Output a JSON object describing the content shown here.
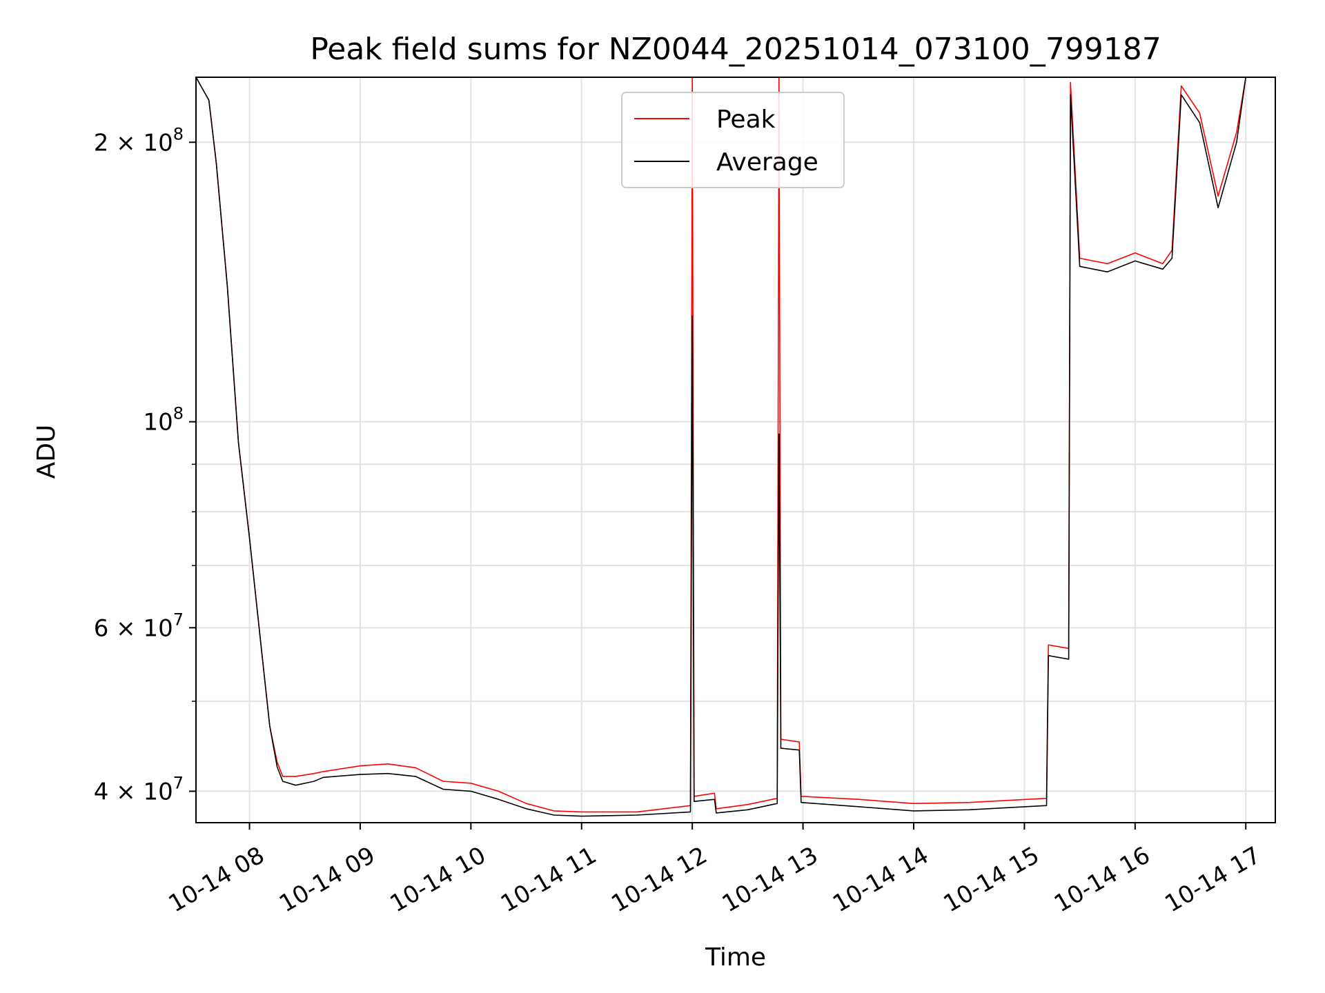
{
  "chart_data": {
    "type": "line",
    "title": "Peak field sums for NZ0044_20251014_073100_799187",
    "xlabel": "Time",
    "ylabel": "ADU",
    "xlim": [
      "2025-10-14 07:31",
      "2025-10-14 17:16"
    ],
    "ylim": [
      37000000,
      235000000
    ],
    "yscale": "log",
    "grid": true,
    "legend_position": "top-center",
    "x_ticks": [
      {
        "x": "2025-10-14 08:00",
        "label": "10-14 08"
      },
      {
        "x": "2025-10-14 09:00",
        "label": "10-14 09"
      },
      {
        "x": "2025-10-14 10:00",
        "label": "10-14 10"
      },
      {
        "x": "2025-10-14 11:00",
        "label": "10-14 11"
      },
      {
        "x": "2025-10-14 12:00",
        "label": "10-14 12"
      },
      {
        "x": "2025-10-14 13:00",
        "label": "10-14 13"
      },
      {
        "x": "2025-10-14 14:00",
        "label": "10-14 14"
      },
      {
        "x": "2025-10-14 15:00",
        "label": "10-14 15"
      },
      {
        "x": "2025-10-14 16:00",
        "label": "10-14 16"
      },
      {
        "x": "2025-10-14 17:00",
        "label": "10-14 17"
      }
    ],
    "y_ticks": [
      {
        "value": 40000000,
        "base": "4 × 10",
        "exp": "7"
      },
      {
        "value": 60000000,
        "base": "6 × 10",
        "exp": "7"
      },
      {
        "value": 100000000,
        "base": "10",
        "exp": "8"
      },
      {
        "value": 200000000,
        "base": "2 × 10",
        "exp": "8"
      }
    ],
    "y_minor_ticks": [
      50000000,
      70000000,
      80000000,
      90000000
    ],
    "series": [
      {
        "name": "Peak",
        "color": "#ff0000",
        "points": [
          [
            "2025-10-14 07:31",
            235000000
          ],
          [
            "2025-10-14 07:38",
            222000000
          ],
          [
            "2025-10-14 07:42",
            190000000
          ],
          [
            "2025-10-14 07:48",
            140000000
          ],
          [
            "2025-10-14 07:54",
            95000000
          ],
          [
            "2025-10-14 08:00",
            75000000
          ],
          [
            "2025-10-14 08:06",
            58000000
          ],
          [
            "2025-10-14 08:11",
            47000000
          ],
          [
            "2025-10-14 08:15",
            43000000
          ],
          [
            "2025-10-14 08:18",
            41500000
          ],
          [
            "2025-10-14 08:25",
            41500000
          ],
          [
            "2025-10-14 08:35",
            41800000
          ],
          [
            "2025-10-14 08:40",
            42000000
          ],
          [
            "2025-10-14 09:00",
            42600000
          ],
          [
            "2025-10-14 09:15",
            42800000
          ],
          [
            "2025-10-14 09:30",
            42400000
          ],
          [
            "2025-10-14 09:45",
            41000000
          ],
          [
            "2025-10-14 10:00",
            40800000
          ],
          [
            "2025-10-14 10:15",
            40000000
          ],
          [
            "2025-10-14 10:30",
            38800000
          ],
          [
            "2025-10-14 10:45",
            38100000
          ],
          [
            "2025-10-14 11:00",
            38000000
          ],
          [
            "2025-10-14 11:30",
            38000000
          ],
          [
            "2025-10-14 11:59",
            38600000
          ],
          [
            "2025-10-14 12:00",
            235000000
          ],
          [
            "2025-10-14 12:01",
            39500000
          ],
          [
            "2025-10-14 12:12",
            39800000
          ],
          [
            "2025-10-14 12:13",
            38300000
          ],
          [
            "2025-10-14 12:30",
            38700000
          ],
          [
            "2025-10-14 12:46",
            39300000
          ],
          [
            "2025-10-14 12:47",
            235000000
          ],
          [
            "2025-10-14 12:48",
            45500000
          ],
          [
            "2025-10-14 12:58",
            45200000
          ],
          [
            "2025-10-14 12:59",
            39500000
          ],
          [
            "2025-10-14 13:30",
            39200000
          ],
          [
            "2025-10-14 14:00",
            38800000
          ],
          [
            "2025-10-14 14:30",
            38900000
          ],
          [
            "2025-10-14 15:12",
            39300000
          ],
          [
            "2025-10-14 15:13",
            57500000
          ],
          [
            "2025-10-14 15:24",
            57000000
          ],
          [
            "2025-10-14 15:25",
            232000000
          ],
          [
            "2025-10-14 15:30",
            150000000
          ],
          [
            "2025-10-14 15:45",
            148000000
          ],
          [
            "2025-10-14 16:00",
            152000000
          ],
          [
            "2025-10-14 16:15",
            148000000
          ],
          [
            "2025-10-14 16:20",
            153000000
          ],
          [
            "2025-10-14 16:25",
            230000000
          ],
          [
            "2025-10-14 16:35",
            215000000
          ],
          [
            "2025-10-14 16:45",
            175000000
          ],
          [
            "2025-10-14 16:55",
            205000000
          ],
          [
            "2025-10-14 17:00",
            235000000
          ]
        ]
      },
      {
        "name": "Average",
        "color": "#000000",
        "points": [
          [
            "2025-10-14 07:31",
            235000000
          ],
          [
            "2025-10-14 07:38",
            222000000
          ],
          [
            "2025-10-14 07:42",
            190000000
          ],
          [
            "2025-10-14 07:48",
            140000000
          ],
          [
            "2025-10-14 07:54",
            95000000
          ],
          [
            "2025-10-14 08:00",
            75000000
          ],
          [
            "2025-10-14 08:06",
            58000000
          ],
          [
            "2025-10-14 08:11",
            47000000
          ],
          [
            "2025-10-14 08:15",
            42500000
          ],
          [
            "2025-10-14 08:18",
            41000000
          ],
          [
            "2025-10-14 08:25",
            40600000
          ],
          [
            "2025-10-14 08:35",
            41000000
          ],
          [
            "2025-10-14 08:40",
            41400000
          ],
          [
            "2025-10-14 09:00",
            41700000
          ],
          [
            "2025-10-14 09:15",
            41800000
          ],
          [
            "2025-10-14 09:30",
            41500000
          ],
          [
            "2025-10-14 09:45",
            40200000
          ],
          [
            "2025-10-14 10:00",
            40000000
          ],
          [
            "2025-10-14 10:15",
            39200000
          ],
          [
            "2025-10-14 10:30",
            38300000
          ],
          [
            "2025-10-14 10:45",
            37700000
          ],
          [
            "2025-10-14 11:00",
            37600000
          ],
          [
            "2025-10-14 11:30",
            37700000
          ],
          [
            "2025-10-14 11:59",
            38000000
          ],
          [
            "2025-10-14 12:00",
            130000000
          ],
          [
            "2025-10-14 12:01",
            39000000
          ],
          [
            "2025-10-14 12:12",
            39200000
          ],
          [
            "2025-10-14 12:13",
            37900000
          ],
          [
            "2025-10-14 12:30",
            38200000
          ],
          [
            "2025-10-14 12:46",
            38800000
          ],
          [
            "2025-10-14 12:47",
            97000000
          ],
          [
            "2025-10-14 12:48",
            44500000
          ],
          [
            "2025-10-14 12:58",
            44300000
          ],
          [
            "2025-10-14 12:59",
            38900000
          ],
          [
            "2025-10-14 13:30",
            38500000
          ],
          [
            "2025-10-14 14:00",
            38100000
          ],
          [
            "2025-10-14 14:30",
            38200000
          ],
          [
            "2025-10-14 15:12",
            38600000
          ],
          [
            "2025-10-14 15:13",
            56000000
          ],
          [
            "2025-10-14 15:24",
            55500000
          ],
          [
            "2025-10-14 15:25",
            225000000
          ],
          [
            "2025-10-14 15:30",
            147000000
          ],
          [
            "2025-10-14 15:45",
            145000000
          ],
          [
            "2025-10-14 16:00",
            149000000
          ],
          [
            "2025-10-14 16:15",
            146000000
          ],
          [
            "2025-10-14 16:20",
            150000000
          ],
          [
            "2025-10-14 16:25",
            225000000
          ],
          [
            "2025-10-14 16:35",
            210000000
          ],
          [
            "2025-10-14 16:45",
            170000000
          ],
          [
            "2025-10-14 16:55",
            200000000
          ],
          [
            "2025-10-14 17:00",
            235000000
          ]
        ]
      }
    ]
  }
}
